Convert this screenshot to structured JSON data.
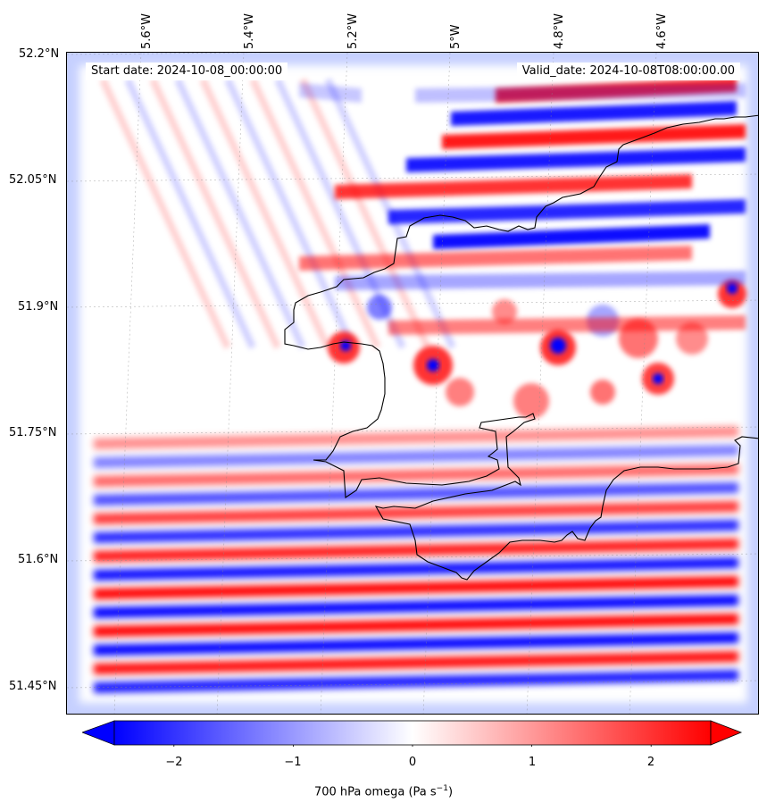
{
  "map": {
    "start_date": "Start date: 2024-10-08_00:00:00",
    "valid_date": "Valid_date: 2024-10-08T08:00:00.00",
    "lat_labels": [
      "52.2°N",
      "52.05°N",
      "51.9°N",
      "51.75°N",
      "51.6°N",
      "51.45°N"
    ],
    "lon_labels": [
      "5.6°W",
      "5.4°W",
      "5.2°W",
      "5°W",
      "4.8°W",
      "4.6°W"
    ],
    "field": "700 hPa omega",
    "colormap": "bwr",
    "colors": {
      "negative": "#0000ff",
      "zero": "#ffffff",
      "positive": "#ff0000",
      "coastline": "#000000"
    }
  },
  "colorbar": {
    "label_text": "700 hPa omega (Pa s",
    "label_sup": "−1",
    "label_close": ")",
    "ticks": [
      "−2",
      "−1",
      "0",
      "1",
      "2"
    ],
    "tick_values": [
      -2,
      -1,
      0,
      1,
      2
    ],
    "range": [
      -2.5,
      2.5
    ],
    "extend": "both"
  }
}
